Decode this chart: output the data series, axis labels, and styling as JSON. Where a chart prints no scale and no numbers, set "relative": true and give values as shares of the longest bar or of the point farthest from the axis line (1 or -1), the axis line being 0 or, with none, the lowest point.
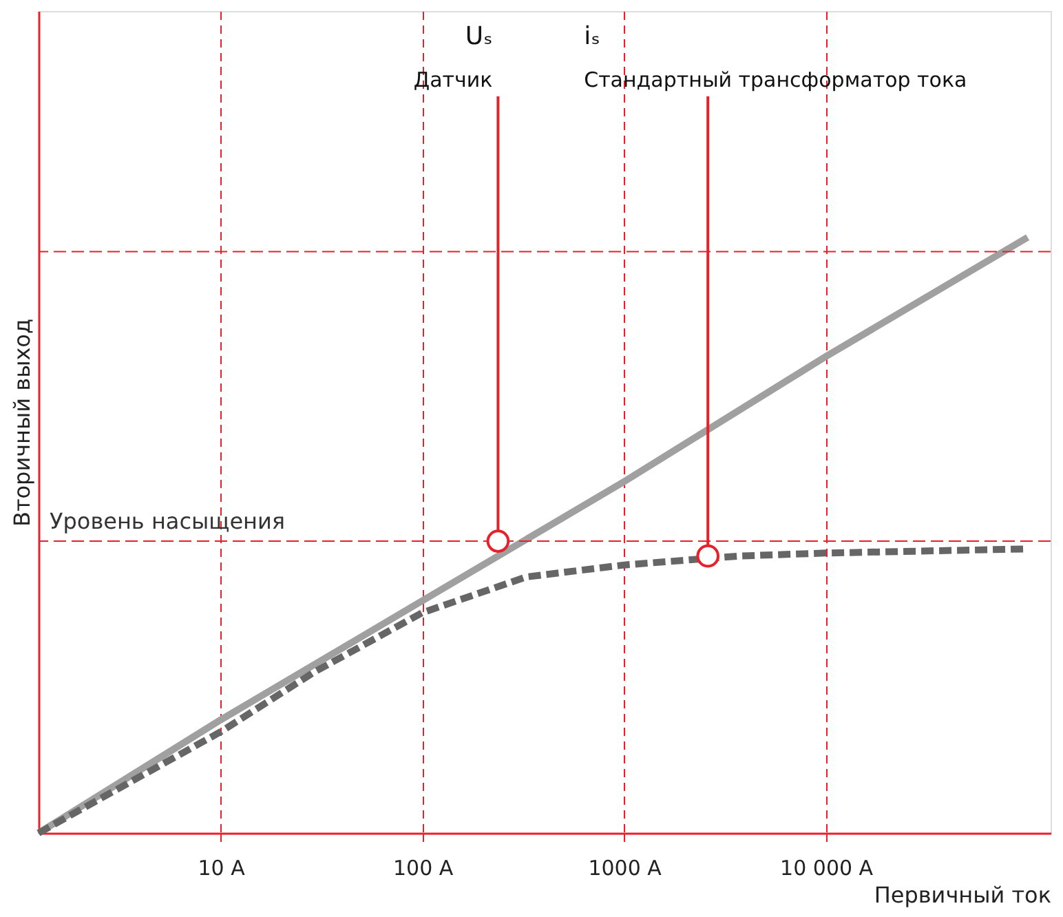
{
  "chart_data": {
    "type": "line",
    "relative": true,
    "log": "x",
    "xlabel": "Первичный ток",
    "ylabel": "Вторичный выход",
    "xlim": [
      1.25,
      130000
    ],
    "xticks": [
      {
        "value": 10,
        "label": "10 A"
      },
      {
        "value": 100,
        "label": "100 A"
      },
      {
        "value": 1000,
        "label": "1000 A"
      },
      {
        "value": 10000,
        "label": "10 000 A"
      }
    ],
    "grid": "x",
    "series": [
      {
        "color": "#a0a0a0",
        "line_style": "solid",
        "x": [
          1.25,
          10,
          100,
          1000,
          10000,
          100000
        ],
        "values": [
          0,
          0.19,
          0.39,
          0.59,
          0.8,
          1.0
        ]
      },
      {
        "color": "#666666",
        "line_style": "dashed",
        "x": [
          1.25,
          10,
          29,
          100,
          328,
          1000,
          3700,
          10000,
          100000
        ],
        "values": [
          0,
          0.17,
          0.27,
          0.37,
          0.43,
          0.45,
          0.465,
          0.47,
          0.477
        ]
      }
    ],
    "ref_lines": [
      {
        "axis": "y",
        "value": 0.49,
        "label": "Уровень насыщения",
        "color": "#e8202a",
        "line_style": "dashed"
      },
      {
        "axis": "y",
        "value": 0.976,
        "label": null,
        "color": "#e8202a",
        "line_style": "dashed"
      }
    ],
    "annotations": [
      "Uₛ",
      "iₛ",
      {
        "text": "Датчик",
        "x": 237,
        "y": 0.49
      },
      {
        "text": "Стандартный трансформатор тока",
        "x": 2600,
        "y": 0.465
      }
    ]
  }
}
